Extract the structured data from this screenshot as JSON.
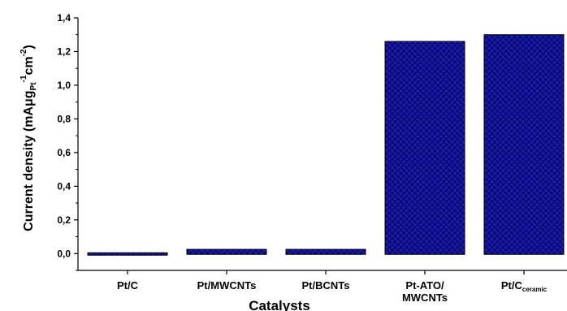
{
  "chart_data": {
    "type": "bar",
    "title": "",
    "xlabel": "Catalysts",
    "ylabel": "Current density (mAμg",
    "ylabel_sub": "Pt",
    "ylabel_sup1": "-1",
    "ylabel_mid": "cm",
    "ylabel_sup2": "-2",
    "ylabel_end": ")",
    "categories": [
      {
        "lines": [
          "Pt/C"
        ]
      },
      {
        "lines": [
          "Pt/MWCNTs"
        ]
      },
      {
        "lines": [
          "Pt/BCNTs"
        ]
      },
      {
        "lines": [
          "Pt-ATO/",
          "MWCNTs"
        ]
      },
      {
        "lines": [
          "Pt/C"
        ],
        "sub": "ceramic"
      }
    ],
    "values": [
      0.0,
      0.025,
      0.025,
      1.26,
      1.3
    ],
    "ylim": [
      -0.1,
      1.4
    ],
    "yticks": [
      "0,0",
      "0,2",
      "0,4",
      "0,6",
      "0,8",
      "1,0",
      "1,2",
      "1,4"
    ],
    "ytick_values": [
      0.0,
      0.2,
      0.4,
      0.6,
      0.8,
      1.0,
      1.2,
      1.4
    ],
    "grid": false,
    "bar_color": "#1a1aa8",
    "hatch_color": "#000055"
  }
}
